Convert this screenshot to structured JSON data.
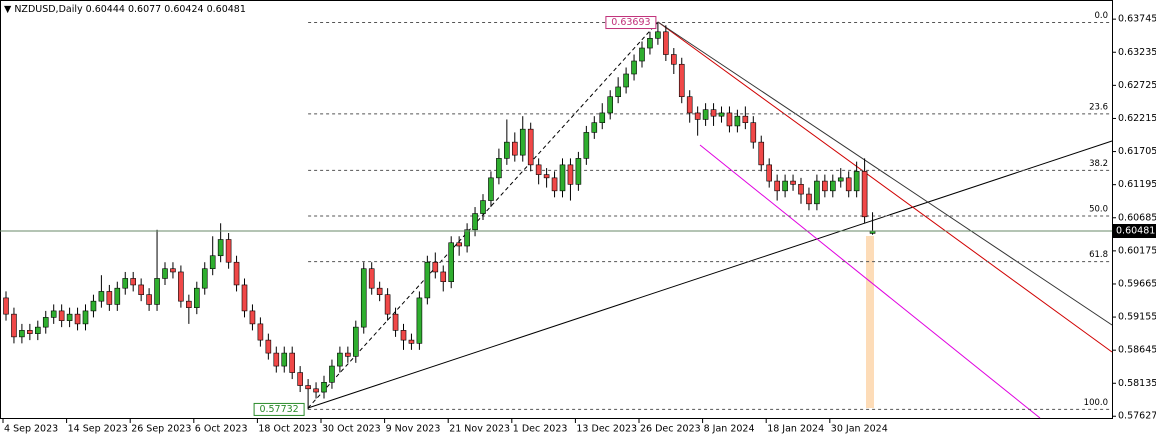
{
  "chart_data": {
    "type": "candlestick",
    "symbol": "NZDUSD,Daily",
    "up_color": "#2fae2f",
    "down_color": "#f04848",
    "wick_color": "#000000",
    "grid": true,
    "ylim": [
      0.576,
      0.6404
    ],
    "yticks": [
      0.63745,
      0.63235,
      0.62725,
      0.62215,
      0.61705,
      0.61195,
      0.60685,
      0.60175,
      0.59665,
      0.59155,
      0.58645,
      0.58135,
      0.57627
    ],
    "categories": [
      "4 Sep 2023",
      null,
      null,
      null,
      null,
      null,
      null,
      null,
      "14 Sep 2023",
      null,
      null,
      null,
      null,
      null,
      null,
      null,
      "26 Sep 2023",
      null,
      null,
      null,
      null,
      null,
      null,
      null,
      "6 Oct 2023",
      null,
      null,
      null,
      null,
      null,
      null,
      null,
      "18 Oct 2023",
      null,
      null,
      null,
      null,
      null,
      null,
      null,
      "30 Oct 2023",
      null,
      null,
      null,
      null,
      null,
      null,
      null,
      "9 Nov 2023",
      null,
      null,
      null,
      null,
      null,
      null,
      null,
      "21 Nov 2023",
      null,
      null,
      null,
      null,
      null,
      null,
      null,
      "1 Dec 2023",
      null,
      null,
      null,
      null,
      null,
      null,
      null,
      "13 Dec 2023",
      null,
      null,
      null,
      null,
      null,
      null,
      null,
      "26 Dec 2023",
      null,
      null,
      null,
      null,
      null,
      null,
      null,
      "8 Jan 2024",
      null,
      null,
      null,
      null,
      null,
      null,
      null,
      "18 Jan 2024",
      null,
      null,
      null,
      null,
      null,
      null,
      null,
      "30 Jan 2024",
      null,
      null,
      null,
      null,
      null
    ],
    "open": [
      0.5945,
      0.592,
      0.5885,
      0.5895,
      0.589,
      0.59,
      0.5915,
      0.5925,
      0.591,
      0.592,
      0.5905,
      0.5925,
      0.594,
      0.5955,
      0.5935,
      0.596,
      0.5975,
      0.5965,
      0.595,
      0.5935,
      0.5975,
      0.599,
      0.5985,
      0.594,
      0.593,
      0.596,
      0.599,
      0.601,
      0.6035,
      0.6,
      0.5965,
      0.5925,
      0.5905,
      0.588,
      0.586,
      0.584,
      0.586,
      0.583,
      0.581,
      0.5805,
      0.58,
      0.5815,
      0.584,
      0.586,
      0.5855,
      0.59,
      0.599,
      0.596,
      0.595,
      0.592,
      0.5895,
      0.588,
      0.5875,
      0.5945,
      0.6,
      0.5985,
      0.597,
      0.603,
      0.6025,
      0.605,
      0.6075,
      0.6095,
      0.613,
      0.616,
      0.6185,
      0.6165,
      0.6205,
      0.615,
      0.6135,
      0.613,
      0.611,
      0.615,
      0.612,
      0.616,
      0.62,
      0.6215,
      0.623,
      0.6255,
      0.627,
      0.629,
      0.631,
      0.633,
      0.6345,
      0.6355,
      0.632,
      0.6305,
      0.6255,
      0.623,
      0.622,
      0.6235,
      0.6225,
      0.623,
      0.621,
      0.6225,
      0.6215,
      0.6185,
      0.615,
      0.6125,
      0.611,
      0.6125,
      0.612,
      0.6105,
      0.609,
      0.6125,
      0.611,
      0.6125,
      0.613,
      0.611,
      0.614,
      0.60444
    ],
    "high": [
      0.5955,
      0.593,
      0.5905,
      0.5905,
      0.591,
      0.5925,
      0.5935,
      0.5935,
      0.593,
      0.593,
      0.5935,
      0.595,
      0.598,
      0.5965,
      0.597,
      0.5985,
      0.5985,
      0.5975,
      0.596,
      0.605,
      0.6,
      0.6,
      0.5995,
      0.595,
      0.597,
      0.6,
      0.604,
      0.606,
      0.6045,
      0.601,
      0.5975,
      0.5935,
      0.5915,
      0.589,
      0.587,
      0.587,
      0.587,
      0.584,
      0.582,
      0.5815,
      0.5825,
      0.585,
      0.587,
      0.587,
      0.591,
      0.6,
      0.6,
      0.597,
      0.596,
      0.593,
      0.5905,
      0.589,
      0.5955,
      0.601,
      0.6015,
      0.5995,
      0.604,
      0.604,
      0.606,
      0.6085,
      0.6105,
      0.614,
      0.6175,
      0.622,
      0.62,
      0.6225,
      0.6215,
      0.616,
      0.6145,
      0.614,
      0.616,
      0.616,
      0.617,
      0.621,
      0.6225,
      0.6245,
      0.6265,
      0.6285,
      0.63,
      0.632,
      0.634,
      0.6355,
      0.63693,
      0.6365,
      0.633,
      0.6315,
      0.6265,
      0.624,
      0.6245,
      0.6245,
      0.624,
      0.624,
      0.6235,
      0.624,
      0.6225,
      0.6195,
      0.616,
      0.6135,
      0.6135,
      0.6135,
      0.613,
      0.6115,
      0.6135,
      0.6135,
      0.6135,
      0.6145,
      0.614,
      0.6155,
      0.616,
      0.6077
    ],
    "low": [
      0.591,
      0.5875,
      0.5875,
      0.588,
      0.588,
      0.589,
      0.5905,
      0.59,
      0.59,
      0.5895,
      0.5895,
      0.5915,
      0.593,
      0.5925,
      0.5925,
      0.595,
      0.5955,
      0.594,
      0.5925,
      0.5925,
      0.5965,
      0.5975,
      0.593,
      0.5905,
      0.592,
      0.595,
      0.598,
      0.6,
      0.599,
      0.5955,
      0.5915,
      0.5895,
      0.587,
      0.585,
      0.583,
      0.583,
      0.582,
      0.58,
      0.57732,
      0.579,
      0.579,
      0.5805,
      0.583,
      0.5845,
      0.5845,
      0.589,
      0.595,
      0.594,
      0.591,
      0.5885,
      0.5865,
      0.5865,
      0.5865,
      0.5935,
      0.5975,
      0.5955,
      0.596,
      0.601,
      0.6015,
      0.604,
      0.6065,
      0.6085,
      0.612,
      0.615,
      0.6155,
      0.6155,
      0.614,
      0.612,
      0.6115,
      0.61,
      0.61,
      0.6095,
      0.611,
      0.615,
      0.619,
      0.6205,
      0.622,
      0.6245,
      0.626,
      0.628,
      0.63,
      0.632,
      0.6335,
      0.631,
      0.629,
      0.6245,
      0.6215,
      0.6195,
      0.621,
      0.621,
      0.6215,
      0.62,
      0.62,
      0.6205,
      0.6175,
      0.614,
      0.6115,
      0.6095,
      0.61,
      0.611,
      0.609,
      0.608,
      0.608,
      0.61,
      0.61,
      0.6115,
      0.61,
      0.61,
      0.606,
      0.60424
    ],
    "close": [
      0.592,
      0.5885,
      0.5895,
      0.589,
      0.59,
      0.5915,
      0.5925,
      0.591,
      0.592,
      0.5905,
      0.5925,
      0.594,
      0.5955,
      0.5935,
      0.596,
      0.5975,
      0.5965,
      0.595,
      0.5935,
      0.5975,
      0.599,
      0.5985,
      0.594,
      0.593,
      0.596,
      0.599,
      0.601,
      0.6035,
      0.6,
      0.5965,
      0.5925,
      0.5905,
      0.588,
      0.586,
      0.584,
      0.586,
      0.583,
      0.581,
      0.5805,
      0.58,
      0.5815,
      0.584,
      0.586,
      0.5855,
      0.59,
      0.599,
      0.596,
      0.595,
      0.592,
      0.5895,
      0.588,
      0.5875,
      0.5945,
      0.6,
      0.5985,
      0.597,
      0.603,
      0.6025,
      0.605,
      0.6075,
      0.6095,
      0.613,
      0.616,
      0.6185,
      0.6165,
      0.6205,
      0.615,
      0.6135,
      0.613,
      0.611,
      0.615,
      0.612,
      0.616,
      0.62,
      0.6215,
      0.623,
      0.6255,
      0.627,
      0.629,
      0.631,
      0.633,
      0.6345,
      0.6355,
      0.632,
      0.6305,
      0.6255,
      0.623,
      0.622,
      0.6235,
      0.6225,
      0.623,
      0.621,
      0.6225,
      0.6215,
      0.6185,
      0.615,
      0.6125,
      0.611,
      0.6125,
      0.612,
      0.6105,
      0.609,
      0.6125,
      0.611,
      0.6125,
      0.613,
      0.611,
      0.614,
      0.607,
      0.60481
    ],
    "fibonacci": {
      "high": 0.63693,
      "low": 0.57732,
      "levels": [
        {
          "value": 0,
          "label": "0.0"
        },
        23.6,
        38.2,
        {
          "value": 50,
          "label": "50.0"
        },
        61.8,
        {
          "value": 100,
          "label": "100.0"
        }
      ]
    }
  }
}
